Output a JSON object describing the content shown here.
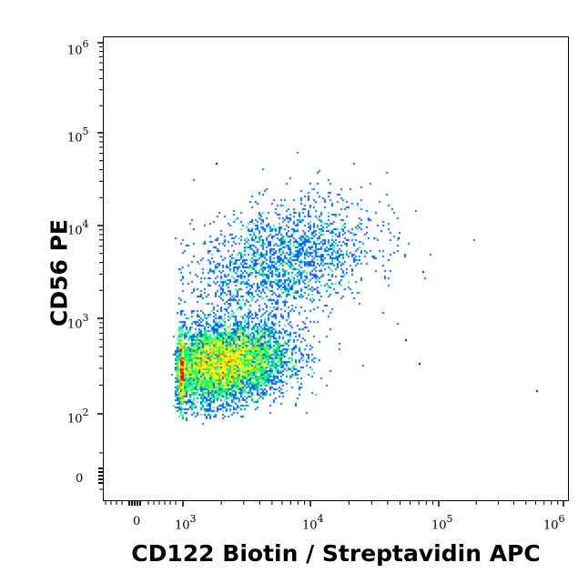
{
  "chart_data": {
    "type": "scatter",
    "subtype": "flow-cytometry-density-dot-plot",
    "title": "",
    "xlabel": "CD122 Biotin / Streptavidin APC",
    "ylabel": "CD56 PE",
    "xscale": "biexponential",
    "yscale": "biexponential",
    "xlim": [
      -300,
      1000000
    ],
    "ylim": [
      -30,
      1000000
    ],
    "x_ticks": [
      {
        "label": "0",
        "value": 0
      },
      {
        "label": "10^3",
        "value": 1000
      },
      {
        "label": "10^4",
        "value": 10000
      },
      {
        "label": "10^5",
        "value": 100000
      },
      {
        "label": "10^6",
        "value": 1000000
      }
    ],
    "y_ticks": [
      {
        "label": "0",
        "value": 0
      },
      {
        "label": "10^2",
        "value": 100
      },
      {
        "label": "10^3",
        "value": 1000
      },
      {
        "label": "10^4",
        "value": 10000
      },
      {
        "label": "10^5",
        "value": 100000
      },
      {
        "label": "10^6",
        "value": 1000000
      }
    ],
    "grid": false,
    "legend": null,
    "color_scale": [
      "#0000cc",
      "#0060ff",
      "#00d0ff",
      "#00ff80",
      "#c0ff00",
      "#ffff00",
      "#ff8000",
      "#ff0000"
    ],
    "populations": [
      {
        "name": "CD122-dim CD56-dim main population",
        "center_x": 2000,
        "center_y": 330,
        "spread_log_x": 0.26,
        "spread_log_y": 0.2,
        "relative_size": 0.78,
        "peak_color": "#ff0000"
      },
      {
        "name": "CD122+ CD56+ population",
        "center_x": 6000,
        "center_y": 4000,
        "spread_log_x": 0.35,
        "spread_log_y": 0.32,
        "relative_size": 0.22,
        "peak_color": "#0060ff"
      }
    ],
    "outliers": [
      {
        "x": 75000,
        "y": 3200
      },
      {
        "x": 55000,
        "y": 600
      },
      {
        "x": 70000,
        "y": 340
      },
      {
        "x": 600000,
        "y": 175
      },
      {
        "x": 48000,
        "y": 7500
      },
      {
        "x": 1800,
        "y": 48000
      }
    ]
  },
  "axes": {
    "x_tick_labels": [
      {
        "base": "0",
        "exp": ""
      },
      {
        "base": "10",
        "exp": "3"
      },
      {
        "base": "10",
        "exp": "4"
      },
      {
        "base": "10",
        "exp": "5"
      },
      {
        "base": "10",
        "exp": "6"
      }
    ],
    "y_tick_labels": [
      {
        "base": "10",
        "exp": "6"
      },
      {
        "base": "10",
        "exp": "5"
      },
      {
        "base": "10",
        "exp": "4"
      },
      {
        "base": "10",
        "exp": "3"
      },
      {
        "base": "10",
        "exp": "2"
      },
      {
        "base": "0",
        "exp": ""
      }
    ]
  }
}
